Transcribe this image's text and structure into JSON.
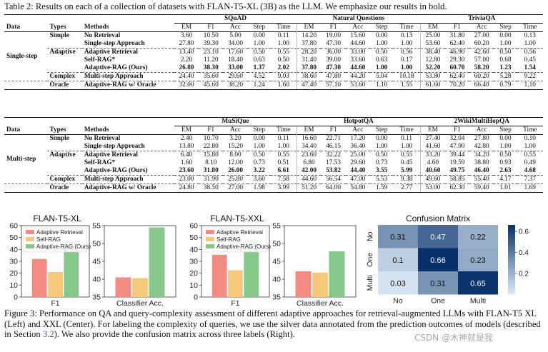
{
  "table_caption": "Table 2: Results on each of a collection of datasets with FLAN-T5-XL (3B) as the LLM. We emphasize our results in bold.",
  "headers": {
    "data": "Data",
    "types": "Types",
    "methods": "Methods"
  },
  "metrics": [
    "EM",
    "F1",
    "Acc",
    "Step",
    "Time"
  ],
  "single_step": {
    "datasets": [
      "SQuAD",
      "Natural Questions",
      "TriviaQA"
    ],
    "data_label": "Single-step",
    "rows": [
      {
        "type": "Simple",
        "method": "No Retrieval",
        "values": [
          "3.60",
          "10.50",
          "5.00",
          "0.00",
          "0.11",
          "14.20",
          "19.00",
          "15.60",
          "0.00",
          "0.13",
          "25.00",
          "31.80",
          "27.00",
          "0.00",
          "0.13"
        ]
      },
      {
        "type": "",
        "method": "Single-step Approach",
        "values": [
          "27.80",
          "39.30",
          "34.00",
          "1.00",
          "1.00",
          "37.80",
          "47.30",
          "44.60",
          "1.00",
          "1.00",
          "53.60",
          "62.40",
          "60.20",
          "1.00",
          "1.00"
        ]
      },
      {
        "type": "Adaptive",
        "method": "Adaptive Retrieval",
        "values": [
          "13.40",
          "23.10",
          "17.60",
          "0.50",
          "0.55",
          "28.20",
          "36.00",
          "33.00",
          "0.50",
          "0.56",
          "38.40",
          "46.90",
          "42.60",
          "0.50",
          "0.56"
        ]
      },
      {
        "type": "",
        "method": "Self-RAG*",
        "values": [
          "2.20",
          "11.20",
          "18.40",
          "0.63",
          "0.50",
          "31.40",
          "39.00",
          "33.60",
          "0.63",
          "0.17",
          "12.80",
          "29.30",
          "57.00",
          "0.68",
          "0.45"
        ]
      },
      {
        "type": "",
        "method": "Adaptive-RAG (Ours)",
        "values": [
          "26.80",
          "38.30",
          "33.00",
          "1.37",
          "2.02",
          "37.80",
          "47.30",
          "44.60",
          "1.00",
          "1.00",
          "52.20",
          "60.70",
          "58.20",
          "1.23",
          "1.54"
        ]
      },
      {
        "type": "Complex",
        "method": "Multi-step Approach",
        "values": [
          "24.40",
          "35.60",
          "29.60",
          "4.52",
          "9.03",
          "38.60",
          "47.80",
          "44.20",
          "5.04",
          "10.18",
          "53.80",
          "62.40",
          "60.20",
          "5.28",
          "9.22"
        ]
      },
      {
        "type": "Oracle",
        "method": "Adaptive-RAG w/ Oracle",
        "values": [
          "32.00",
          "45.60",
          "38.20",
          "1.24",
          "1.60",
          "47.40",
          "57.10",
          "53.60",
          "1.10",
          "1.55",
          "61.60",
          "70.20",
          "66.40",
          "0.79",
          "1.10"
        ]
      }
    ]
  },
  "multi_step": {
    "datasets": [
      "MuSiQue",
      "HotpotQA",
      "2WikiMultiHopQA"
    ],
    "data_label": "Multi-step",
    "rows": [
      {
        "type": "Simple",
        "method": "No Retrieval",
        "values": [
          "2.40",
          "10.70",
          "3.20",
          "0.00",
          "0.11",
          "16.60",
          "22.71",
          "17.20",
          "0.00",
          "0.11",
          "27.40",
          "32.04",
          "27.80",
          "0.00",
          "0.10"
        ]
      },
      {
        "type": "",
        "method": "Single-step Approach",
        "values": [
          "13.80",
          "22.80",
          "15.20",
          "1.00",
          "1.00",
          "34.40",
          "46.15",
          "36.40",
          "1.00",
          "1.00",
          "41.60",
          "47.90",
          "42.80",
          "1.00",
          "1.00"
        ]
      },
      {
        "type": "Adaptive",
        "method": "Adaptive Retrieval",
        "values": [
          "6.40",
          "15.80",
          "8.00",
          "0.50",
          "0.55",
          "23.60",
          "32.22",
          "25.00",
          "0.50",
          "0.55",
          "33.20",
          "39.44",
          "34.20",
          "0.50",
          "0.55"
        ]
      },
      {
        "type": "",
        "method": "Self-RAG*",
        "values": [
          "1.60",
          "8.10",
          "12.00",
          "0.73",
          "0.51",
          "6.80",
          "17.53",
          "29.60",
          "0.73",
          "0.45",
          "4.60",
          "19.59",
          "38.80",
          "0.93",
          "0.49"
        ]
      },
      {
        "type": "",
        "method": "Adaptive-RAG (Ours)",
        "values": [
          "23.60",
          "31.80",
          "26.00",
          "3.22",
          "6.61",
          "42.00",
          "53.82",
          "44.40",
          "3.55",
          "5.99",
          "40.60",
          "49.75",
          "46.40",
          "2.63",
          "4.68"
        ]
      },
      {
        "type": "Complex",
        "method": "Multi-step Approach",
        "values": [
          "23.00",
          "31.90",
          "25.80",
          "3.60",
          "7.58",
          "44.60",
          "56.54",
          "47.00",
          "5.53",
          "9.38",
          "49.60",
          "58.85",
          "55.40",
          "4.17",
          "7.37"
        ]
      },
      {
        "type": "Oracle",
        "method": "Adaptive-RAG w/ Oracle",
        "values": [
          "24.80",
          "38.50",
          "27.00",
          "1.98",
          "3.99",
          "51.20",
          "64.00",
          "54.80",
          "1.59",
          "2.77",
          "53.00",
          "62.30",
          "59.40",
          "1.01",
          "1.69"
        ]
      }
    ]
  },
  "chart_data": [
    {
      "type": "bar",
      "title": "FLAN-T5-XL",
      "categories": [
        "F1"
      ],
      "ylim": [
        0,
        60
      ],
      "yticks": [
        "0",
        "10",
        "20",
        "30",
        "40",
        "50",
        "60"
      ],
      "series": [
        {
          "name": "Adaptive Retrieval",
          "values": [
            32
          ],
          "color": "#f28b82"
        },
        {
          "name": "Self-RAG",
          "values": [
            21
          ],
          "color": "#f6c879"
        },
        {
          "name": "Adaptive-RAG (Ours)",
          "values": [
            47
          ],
          "color": "#86c98b"
        }
      ],
      "legend": "top-left"
    },
    {
      "type": "bar",
      "title": "",
      "categories": [
        "Classifier Acc."
      ],
      "ylim": [
        35,
        55
      ],
      "yticks": [
        "35",
        "40",
        "45",
        "50",
        "55"
      ],
      "series": [
        {
          "name": "Adaptive Retrieval",
          "values": [
            40.5
          ],
          "color": "#f28b82"
        },
        {
          "name": "Self-RAG",
          "values": [
            40.3
          ],
          "color": "#f6c879"
        },
        {
          "name": "Adaptive-RAG (Ours)",
          "values": [
            54.5
          ],
          "color": "#86c98b"
        }
      ]
    },
    {
      "type": "bar",
      "title": "FLAN-T5-XXL",
      "categories": [
        "F1"
      ],
      "ylim": [
        0,
        60
      ],
      "yticks": [
        "0",
        "10",
        "20",
        "30",
        "40",
        "50",
        "60"
      ],
      "series": [
        {
          "name": "Adaptive Retrieval",
          "values": [
            35.5
          ],
          "color": "#f28b82"
        },
        {
          "name": "Self-RAG",
          "values": [
            22.5
          ],
          "color": "#f6c879"
        },
        {
          "name": "Adaptive-RAG (Ours)",
          "values": [
            48.5
          ],
          "color": "#86c98b"
        }
      ],
      "legend": "top-left"
    },
    {
      "type": "bar",
      "title": "",
      "categories": [
        "Classifier Acc."
      ],
      "ylim": [
        35,
        55
      ],
      "yticks": [
        "35",
        "40",
        "45",
        "50",
        "55"
      ],
      "series": [
        {
          "name": "Adaptive Retrieval",
          "values": [
            42.2
          ],
          "color": "#f28b82"
        },
        {
          "name": "Self-RAG",
          "values": [
            41.8
          ],
          "color": "#f6c879"
        },
        {
          "name": "Adaptive-RAG (Ours)",
          "values": [
            47.8
          ],
          "color": "#86c98b"
        }
      ]
    },
    {
      "type": "heatmap",
      "title": "Confusion Matrix",
      "x": [
        "No",
        "One",
        "Multi"
      ],
      "y": [
        "No",
        "One",
        "Multi"
      ],
      "values": [
        [
          "0.31",
          "0.47",
          "0.22"
        ],
        [
          "0.1",
          "0.66",
          "0.23"
        ],
        [
          "0.03",
          "0.31",
          "0.65"
        ]
      ],
      "colorbar_ticks": [
        "0.2",
        "0.4",
        "0.6"
      ],
      "vmin": 0,
      "vmax": 0.66
    }
  ],
  "figure_caption": {
    "text_before": "Figure 3: Performance on QA and query-complexity assessment of different adaptive approaches for retrieval-augmented LLMs with FLAN-T5 XL (Left) and XXL (Center). For labeling the complexity of queries, we use the silver data annotated from the prediction outcomes of models (described in Section ",
    "ref": "3.2",
    "text_after": "). We also provide the confusion matrix across three labels (Right)."
  },
  "watermark": "CSDN @木神就是我"
}
